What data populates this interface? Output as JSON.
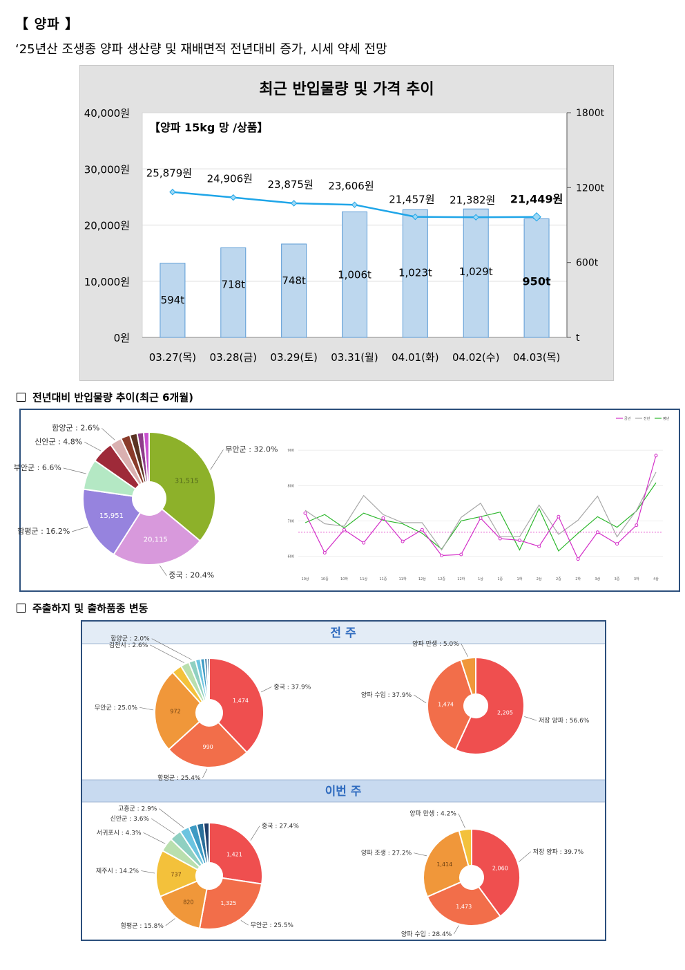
{
  "header": {
    "title": "【 양파 】",
    "subtitle": "‘25년산 조생종 양파 생산량 및 재배면적 전년대비 증가, 시세 약세 전망"
  },
  "top_chart": {
    "chart_data": {
      "type": "bar",
      "title": "최근 반입물량 및 가격 추이",
      "annotation": "【양파 15kg 망 /상품】",
      "categories": [
        "03.27(목)",
        "03.28(금)",
        "03.29(토)",
        "03.31(월)",
        "04.01(화)",
        "04.02(수)",
        "04.03(목)"
      ],
      "series": [
        {
          "name": "반입물량",
          "type": "bar",
          "axis": "right",
          "values": [
            594,
            718,
            748,
            1006,
            1023,
            1029,
            950
          ],
          "labels": [
            "594t",
            "718t",
            "748t",
            "1,006t",
            "1,023t",
            "1,029t",
            "950t"
          ]
        },
        {
          "name": "가격",
          "type": "line",
          "axis": "left",
          "values": [
            25879,
            24906,
            23875,
            23606,
            21457,
            21382,
            21449
          ],
          "labels": [
            "25,879원",
            "24,906원",
            "23,875원",
            "23,606원",
            "21,457원",
            "21,382원",
            "21,449원"
          ]
        }
      ],
      "y_left": {
        "ylim": [
          0,
          40000
        ],
        "ticks": [
          "0원",
          "10,000원",
          "20,000원",
          "30,000원",
          "40,000원"
        ]
      },
      "y_right": {
        "ylim": [
          0,
          1800
        ],
        "ticks": [
          "t",
          "600t",
          "1200t",
          "1800t"
        ]
      },
      "grid": true,
      "colors": {
        "bar": "#bdd7ee",
        "bar_border": "#5b9bd5",
        "line": "#1ea5e8",
        "marker": "#9dd8f5"
      }
    }
  },
  "section1": {
    "title": "전년대비 반입물량 추이(최근 6개월)",
    "pie": {
      "chart_data": {
        "type": "pie",
        "slices": [
          {
            "label": "무안군 : 32.0%",
            "value": 32.0,
            "inner": "31,515",
            "color": "#8db12a"
          },
          {
            "label": "중국 : 20.4%",
            "value": 20.4,
            "inner": "20,115",
            "color": "#d899dc"
          },
          {
            "label": "함평군 : 16.2%",
            "value": 16.2,
            "inner": "15,951",
            "color": "#9683de"
          },
          {
            "label": "부안군 : 6.6%",
            "value": 6.6,
            "inner": "",
            "color": "#b4e8c4"
          },
          {
            "label": "신안군 : 4.8%",
            "value": 4.8,
            "inner": "",
            "color": "#9e2a39"
          },
          {
            "label": "함양군 : 2.6%",
            "value": 2.6,
            "inner": "",
            "color": "#dab0b0"
          },
          {
            "label": "",
            "value": 2.0,
            "inner": "",
            "color": "#8a3b2a"
          },
          {
            "label": "",
            "value": 1.6,
            "inner": "",
            "color": "#5a3322"
          },
          {
            "label": "",
            "value": 1.4,
            "inner": "",
            "color": "#8e3c8a"
          },
          {
            "label": "",
            "value": 1.2,
            "inner": "",
            "color": "#c94fd0"
          }
        ]
      }
    },
    "line": {
      "chart_data": {
        "type": "line",
        "legend": [
          "금년",
          "전년",
          "평년"
        ],
        "categories": [
          "10상",
          "10중",
          "10하",
          "11상",
          "11중",
          "11하",
          "12상",
          "12중",
          "12하",
          "1상",
          "1중",
          "1하",
          "2상",
          "2중",
          "2하",
          "3상",
          "3중",
          "3하",
          "4상"
        ],
        "yticks": [
          "600",
          "700",
          "800",
          "900"
        ],
        "ylim": [
          560,
          920
        ],
        "reference": 668,
        "series": [
          {
            "name": "금년",
            "color": "#d32fc8",
            "values": [
              722,
              610,
              675,
              638,
              708,
              642,
              675,
              602,
              605,
              708,
              650,
              645,
              628,
              712,
              592,
              668,
              635,
              688,
              885
            ]
          },
          {
            "name": "전년",
            "color": "#a8a8a8",
            "values": [
              730,
              692,
              685,
              772,
              718,
              695,
              695,
              618,
              710,
              750,
              655,
              655,
              745,
              662,
              702,
              770,
              655,
              730,
              838
            ]
          },
          {
            "name": "평년",
            "color": "#2db82d",
            "values": [
              695,
              718,
              680,
              722,
              702,
              692,
              665,
              620,
              700,
              712,
              725,
              618,
              735,
              615,
              665,
              712,
              682,
              728,
              808
            ]
          }
        ]
      }
    }
  },
  "section2": {
    "title": "주출하지 및 출하품종 변동",
    "prev_week": {
      "label": "전 주",
      "origin_pie": {
        "chart_data": {
          "type": "pie",
          "slices": [
            {
              "label": "중국 : 37.9%",
              "value": 37.9,
              "inner": "1,474",
              "color": "#ef4f4f"
            },
            {
              "label": "함평군 : 25.4%",
              "value": 25.4,
              "inner": "990",
              "color": "#f26e4a"
            },
            {
              "label": "무안군 : 25.0%",
              "value": 25.0,
              "inner": "972",
              "color": "#f0973a"
            },
            {
              "label": "",
              "value": 3.0,
              "inner": "",
              "color": "#f3c13b"
            },
            {
              "label": "김천시 : 2.6%",
              "value": 2.6,
              "inner": "",
              "color": "#b9dfae"
            },
            {
              "label": "함양군 : 2.0%",
              "value": 2.0,
              "inner": "",
              "color": "#8fd0c1"
            },
            {
              "label": "",
              "value": 1.5,
              "inner": "",
              "color": "#6cc4e0"
            },
            {
              "label": "",
              "value": 1.2,
              "inner": "",
              "color": "#3d9bc4"
            },
            {
              "label": "",
              "value": 0.8,
              "inner": "",
              "color": "#2a6f9a"
            },
            {
              "label": "",
              "value": 0.6,
              "inner": "",
              "color": "#1f3f6b"
            }
          ]
        }
      },
      "variety_pie": {
        "chart_data": {
          "type": "pie",
          "slices": [
            {
              "label": "저장 양파 : 56.6%",
              "value": 56.6,
              "inner": "2,205",
              "color": "#ef4f4f"
            },
            {
              "label": "양파 수입 : 37.9%",
              "value": 37.9,
              "inner": "1,474",
              "color": "#f26e4a"
            },
            {
              "label": "양파 만생 : 5.0%",
              "value": 5.0,
              "inner": "",
              "color": "#f0973a"
            }
          ]
        }
      }
    },
    "this_week": {
      "label": "이번 주",
      "origin_pie": {
        "chart_data": {
          "type": "pie",
          "slices": [
            {
              "label": "중국 : 27.4%",
              "value": 27.4,
              "inner": "1,421",
              "color": "#ef4f4f"
            },
            {
              "label": "무안군 : 25.5%",
              "value": 25.5,
              "inner": "1,325",
              "color": "#f26e4a"
            },
            {
              "label": "함평군 : 15.8%",
              "value": 15.8,
              "inner": "820",
              "color": "#f0973a"
            },
            {
              "label": "제주시 : 14.2%",
              "value": 14.2,
              "inner": "737",
              "color": "#f3c13b"
            },
            {
              "label": "서귀포시 : 4.3%",
              "value": 4.3,
              "inner": "",
              "color": "#b9dfae"
            },
            {
              "label": "신안군 : 3.6%",
              "value": 3.6,
              "inner": "",
              "color": "#8fd0c1"
            },
            {
              "label": "고흥군 : 2.9%",
              "value": 2.9,
              "inner": "",
              "color": "#6cc4e0"
            },
            {
              "label": "",
              "value": 2.5,
              "inner": "",
              "color": "#3d9bc4"
            },
            {
              "label": "",
              "value": 2.1,
              "inner": "",
              "color": "#2a6f9a"
            },
            {
              "label": "",
              "value": 1.7,
              "inner": "",
              "color": "#1f3f6b"
            }
          ]
        }
      },
      "variety_pie": {
        "chart_data": {
          "type": "pie",
          "slices": [
            {
              "label": "저장 양파 : 39.7%",
              "value": 39.7,
              "inner": "2,060",
              "color": "#ef4f4f"
            },
            {
              "label": "양파 수입 : 28.4%",
              "value": 28.4,
              "inner": "1,473",
              "color": "#f26e4a"
            },
            {
              "label": "양파 조생 : 27.2%",
              "value": 27.2,
              "inner": "1,414",
              "color": "#f0973a"
            },
            {
              "label": "양파 만생 : 4.2%",
              "value": 4.2,
              "inner": "",
              "color": "#f3c13b"
            }
          ]
        }
      }
    }
  }
}
